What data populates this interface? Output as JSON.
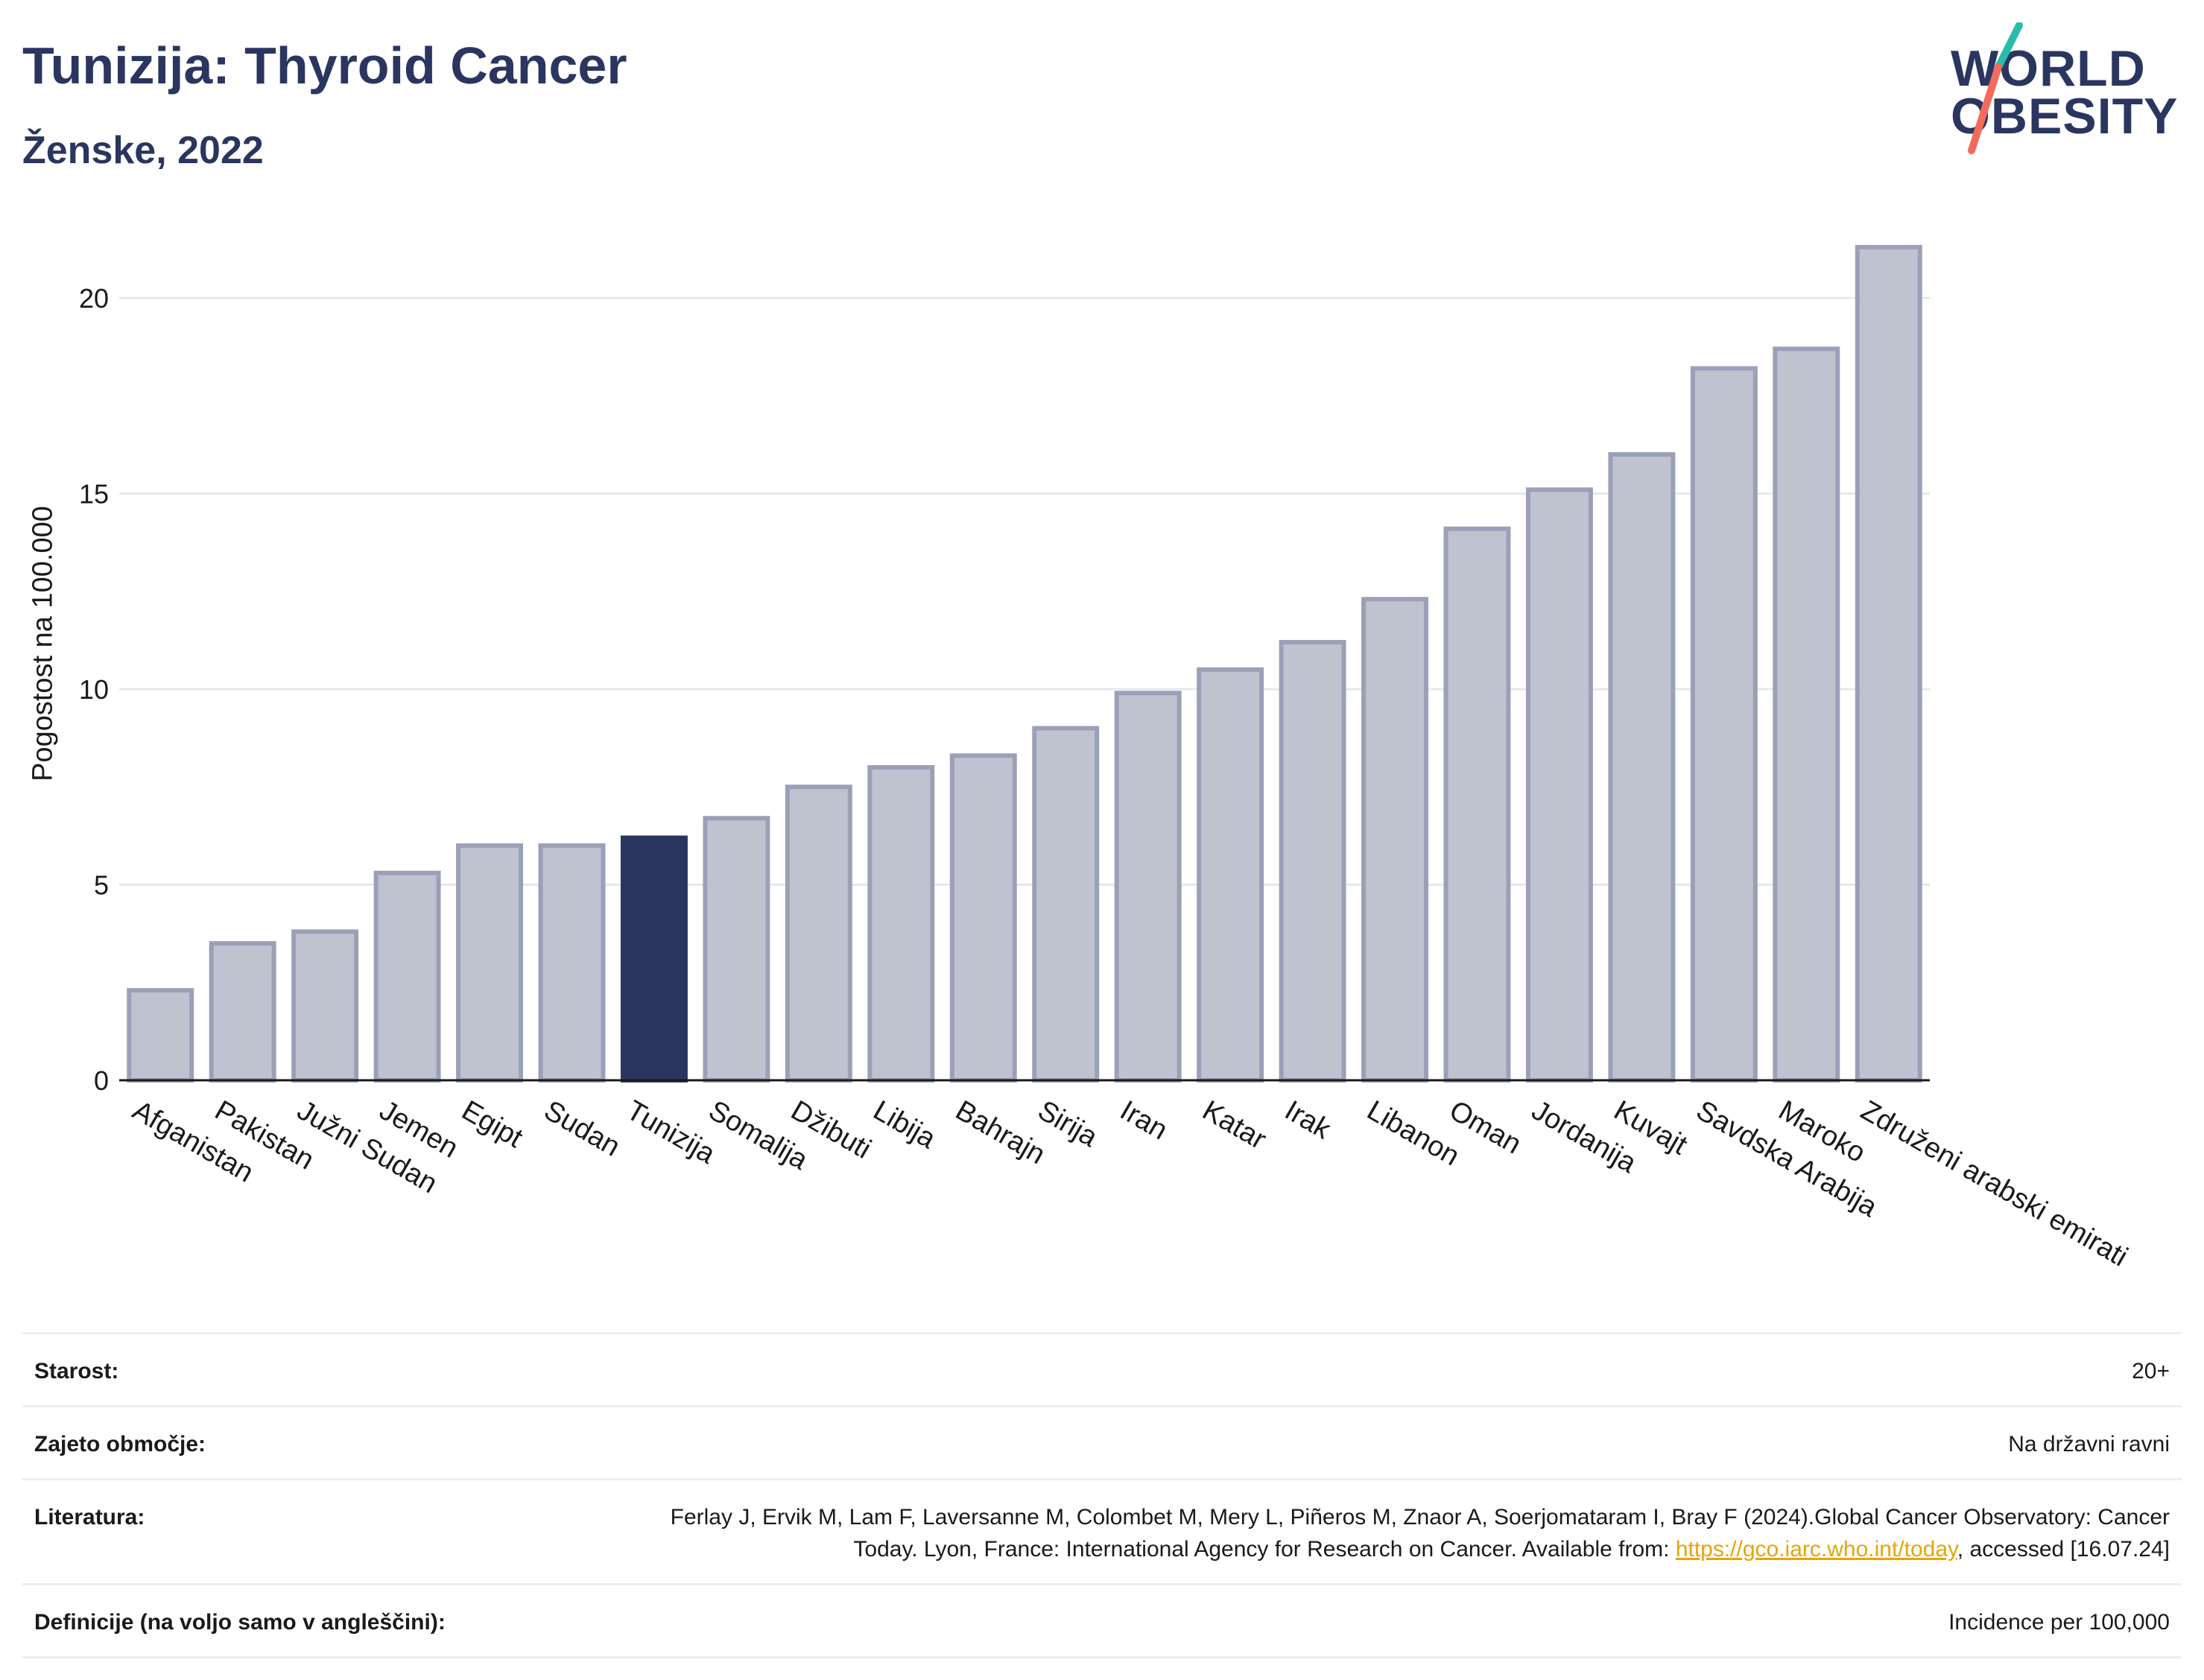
{
  "header": {
    "title": "Tunizija: Thyroid Cancer",
    "subtitle": "Ženske, 2022"
  },
  "logo": {
    "line1": "WORLD",
    "line2": "OBESITY",
    "colors": {
      "text": "#2a365f",
      "slash_top": "#2bbbad",
      "slash_bottom": "#f26b5b"
    }
  },
  "chart_data": {
    "type": "bar",
    "title": "",
    "xlabel": "",
    "ylabel": "Pogostost na 100.000",
    "ylim": [
      0,
      22
    ],
    "yticks": [
      0,
      5,
      10,
      15,
      20
    ],
    "grid": true,
    "highlight": "Tunizija",
    "colors": {
      "bar": "#bfc3d0",
      "bar_edge": "#9aa0b8",
      "highlight": "#2a365f"
    },
    "categories": [
      "Afganistan",
      "Pakistan",
      "Južni Sudan",
      "Jemen",
      "Egipt",
      "Sudan",
      "Tunizija",
      "Somalija",
      "Džibuti",
      "Libija",
      "Bahrajn",
      "Sirija",
      "Iran",
      "Katar",
      "Irak",
      "Libanon",
      "Oman",
      "Jordanija",
      "Kuvajt",
      "Savdska Arabija",
      "Maroko",
      "Združeni arabski emirati"
    ],
    "values": [
      2.3,
      3.5,
      3.8,
      5.3,
      6.0,
      6.0,
      6.2,
      6.7,
      7.5,
      8.0,
      8.3,
      9.0,
      9.9,
      10.5,
      11.2,
      12.3,
      14.1,
      15.1,
      16.0,
      18.2,
      18.7,
      21.3
    ]
  },
  "meta": {
    "rows": [
      {
        "key": "Starost:",
        "value": "20+"
      },
      {
        "key": "Zajeto območje:",
        "value": "Na državni ravni"
      },
      {
        "key": "Literatura:",
        "ref_before": "Ferlay J, Ervik M, Lam F, Laversanne M, Colombet M, Mery L, Piñeros M, Znaor A, Soerjomataram I, Bray F (2024).Global Cancer Observatory: Cancer Today. Lyon, France: International Agency for Research on Cancer. Available from: ",
        "ref_link": "https://gco.iarc.who.int/today",
        "ref_after": ", accessed [16.07.24]"
      },
      {
        "key": "Definicije (na voljo samo v angleščini):",
        "value": "Incidence per 100,000"
      }
    ]
  }
}
